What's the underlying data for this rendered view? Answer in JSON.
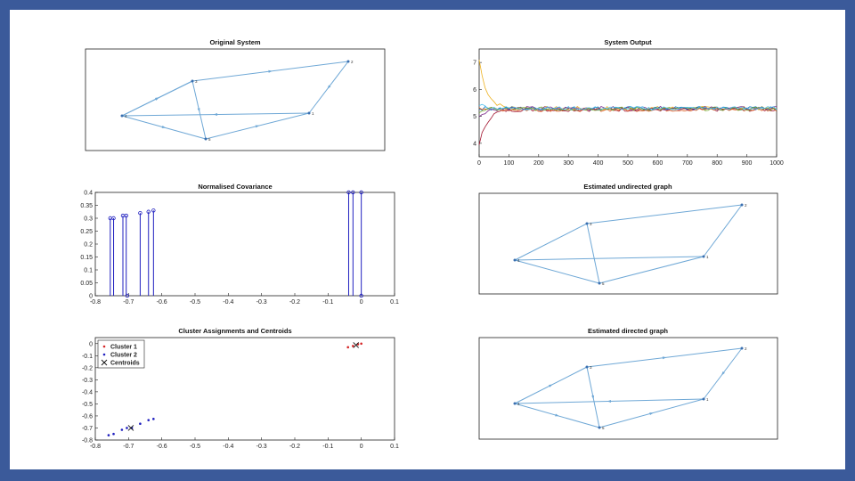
{
  "charts": {
    "original_system": {
      "title": "Original System"
    },
    "system_output": {
      "title": "System Output"
    },
    "normalised_covariance": {
      "title": "Normalised Covariance"
    },
    "estimated_undirected": {
      "title": "Estimated undirected graph"
    },
    "cluster_assignments": {
      "title": "Cluster Assignments and Centroids"
    },
    "estimated_directed": {
      "title": "Estimated directed graph"
    }
  },
  "chart_data": [
    {
      "id": "original_system",
      "type": "graph",
      "title": "Original System",
      "node_labels": [
        "1",
        "2",
        "3",
        "4",
        "5"
      ],
      "directed": true,
      "edge_color": "#6fa8d6"
    },
    {
      "id": "system_output",
      "type": "line",
      "title": "System Output",
      "xlim": [
        0,
        1000
      ],
      "ylim": [
        3.5,
        7.5
      ],
      "x_ticks": [
        "0",
        "100",
        "200",
        "300",
        "400",
        "500",
        "600",
        "700",
        "800",
        "900",
        "1000"
      ],
      "y_ticks": [
        "4",
        "5",
        "6",
        "7"
      ],
      "series": [
        {
          "color": "#edb120",
          "start": 7.1,
          "steady": 5.3
        },
        {
          "color": "#a2142f",
          "start": 3.9,
          "steady": 5.25
        },
        {
          "color": "#0072bd",
          "start": 5.3,
          "steady": 5.3
        },
        {
          "color": "#d95319",
          "start": 5.35,
          "steady": 5.25
        },
        {
          "color": "#7e2f8e",
          "start": 5.0,
          "steady": 5.3
        },
        {
          "color": "#77ac30",
          "start": 5.2,
          "steady": 5.28
        },
        {
          "color": "#4dbeee",
          "start": 5.45,
          "steady": 5.3
        }
      ]
    },
    {
      "id": "normalised_covariance",
      "type": "stem",
      "title": "Normalised Covariance",
      "xlim": [
        -0.8,
        0.1
      ],
      "ylim": [
        0,
        0.4
      ],
      "x_ticks": [
        "-0.8",
        "-0.7",
        "-0.6",
        "-0.5",
        "-0.4",
        "-0.3",
        "-0.2",
        "-0.1",
        "0",
        "0.1"
      ],
      "y_ticks": [
        "0",
        "0.05",
        "0.1",
        "0.15",
        "0.2",
        "0.25",
        "0.3",
        "0.35",
        "0.4"
      ],
      "points": [
        {
          "x": -0.755,
          "y": 0.3
        },
        {
          "x": -0.745,
          "y": 0.3
        },
        {
          "x": -0.717,
          "y": 0.31
        },
        {
          "x": -0.707,
          "y": 0.31
        },
        {
          "x": -0.665,
          "y": 0.32
        },
        {
          "x": -0.64,
          "y": 0.325
        },
        {
          "x": -0.625,
          "y": 0.33
        },
        {
          "x": -0.038,
          "y": 0.4
        },
        {
          "x": -0.025,
          "y": 0.4
        },
        {
          "x": 0.0,
          "y": 0.4
        },
        {
          "x": 0.0,
          "y": 0.0
        },
        {
          "x": -0.704,
          "y": 0.0
        }
      ],
      "color": "#1f1fbf"
    },
    {
      "id": "estimated_undirected",
      "type": "graph",
      "title": "Estimated undirected graph",
      "node_labels": [
        "1",
        "2",
        "3",
        "4",
        "5"
      ],
      "directed": false,
      "edge_color": "#6fa8d6"
    },
    {
      "id": "cluster_assignments",
      "type": "scatter",
      "title": "Cluster Assignments and Centroids",
      "xlim": [
        -0.8,
        0.1
      ],
      "ylim": [
        -0.8,
        0.05
      ],
      "x_ticks": [
        "-0.8",
        "-0.7",
        "-0.6",
        "-0.5",
        "-0.4",
        "-0.3",
        "-0.2",
        "-0.1",
        "0",
        "0.1"
      ],
      "y_ticks": [
        "-0.8",
        "-0.7",
        "-0.6",
        "-0.5",
        "-0.4",
        "-0.3",
        "-0.2",
        "-0.1",
        "0"
      ],
      "legend_position": "top-left",
      "series": [
        {
          "name": "Cluster 1",
          "color": "#d62728",
          "marker": "dot",
          "points": [
            [
              -0.04,
              -0.03
            ],
            [
              -0.025,
              -0.02
            ],
            [
              -0.01,
              -0.005
            ],
            [
              0.0,
              0.0
            ]
          ]
        },
        {
          "name": "Cluster 2",
          "color": "#1f1fbf",
          "marker": "dot",
          "points": [
            [
              -0.76,
              -0.76
            ],
            [
              -0.745,
              -0.75
            ],
            [
              -0.72,
              -0.715
            ],
            [
              -0.705,
              -0.7
            ],
            [
              -0.69,
              -0.7
            ],
            [
              -0.665,
              -0.665
            ],
            [
              -0.64,
              -0.635
            ],
            [
              -0.625,
              -0.625
            ]
          ]
        },
        {
          "name": "Centroids",
          "color": "#111111",
          "marker": "x",
          "points": [
            [
              -0.693,
              -0.7
            ],
            [
              -0.016,
              -0.012
            ]
          ]
        }
      ]
    },
    {
      "id": "estimated_directed",
      "type": "graph",
      "title": "Estimated directed graph",
      "node_labels": [
        "1",
        "2",
        "3",
        "4",
        "5"
      ],
      "directed": true,
      "edge_color": "#6fa8d6"
    }
  ]
}
